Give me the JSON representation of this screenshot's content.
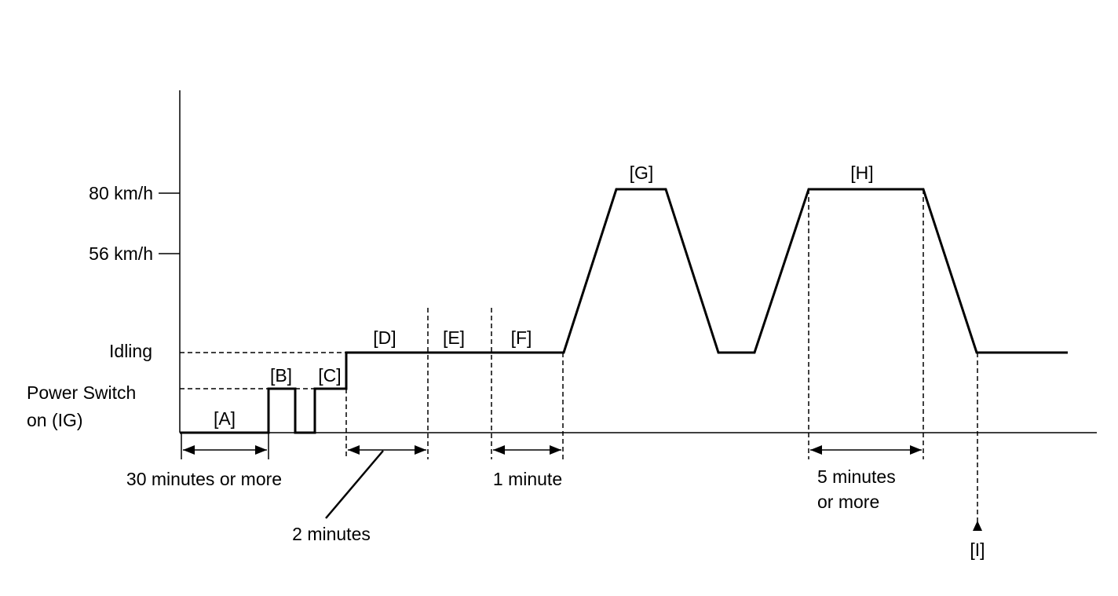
{
  "y_axis_labels": {
    "speed_80": "80 km/h",
    "speed_56": "56 km/h",
    "idling": "Idling",
    "power_line1": "Power Switch",
    "power_line2": "on (IG)"
  },
  "phases": {
    "a": "[A]",
    "b": "[B]",
    "c": "[C]",
    "d": "[D]",
    "e": "[E]",
    "f": "[F]",
    "g": "[G]",
    "h": "[H]",
    "i": "[I]"
  },
  "durations": {
    "a": "30 minutes or more",
    "d": "2 minutes",
    "f": "1 minute",
    "h_line1": "5 minutes",
    "h_line2": "or more"
  },
  "colors": {
    "line": "#000000",
    "background": "#ffffff"
  }
}
